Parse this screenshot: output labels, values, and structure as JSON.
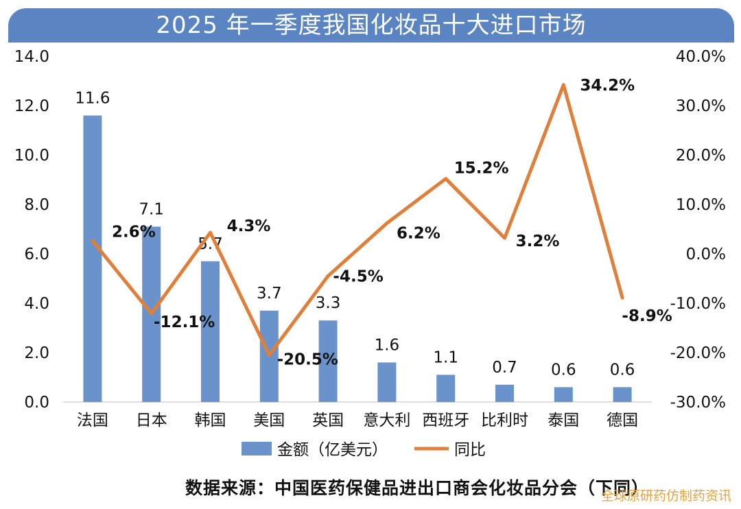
{
  "title": "2025 年一季度我国化妆品十大进口市场",
  "source": "数据来源：中国医药保健品进出口商会化妆品分会（下同）",
  "watermark": "全球原研药仿制药资讯",
  "colors": {
    "bar": "#6a93cb",
    "line": "#e07f3a",
    "banner": "#5b85c2"
  },
  "chart_data": {
    "type": "bar",
    "title": "2025 年一季度我国化妆品十大进口市场",
    "categories": [
      "法国",
      "日本",
      "韩国",
      "美国",
      "英国",
      "意大利",
      "西班牙",
      "比利时",
      "泰国",
      "德国"
    ],
    "series": [
      {
        "name": "金额（亿美元）",
        "type": "bar",
        "axis": "left",
        "values": [
          11.6,
          7.1,
          5.7,
          3.7,
          3.3,
          1.6,
          1.1,
          0.7,
          0.6,
          0.6
        ],
        "labels": [
          "11.6",
          "7.1",
          "5.7",
          "3.7",
          "3.3",
          "1.6",
          "1.1",
          "0.7",
          "0.6",
          "0.6"
        ]
      },
      {
        "name": "同比",
        "type": "line",
        "axis": "right",
        "values": [
          2.6,
          -12.1,
          4.3,
          -20.5,
          -4.5,
          6.2,
          15.2,
          3.2,
          34.2,
          -8.9
        ],
        "labels": [
          "2.6%",
          "-12.1%",
          "4.3%",
          "-20.5%",
          "-4.5%",
          "6.2%",
          "15.2%",
          "3.2%",
          "34.2%",
          "-8.9%"
        ]
      }
    ],
    "y_left": {
      "min": 0,
      "max": 14,
      "ticks": [
        "0.0",
        "2.0",
        "4.0",
        "6.0",
        "8.0",
        "10.0",
        "12.0",
        "14.0"
      ]
    },
    "y_right": {
      "min": -30,
      "max": 40,
      "ticks": [
        "-30.0%",
        "-20.0%",
        "-10.0%",
        "0.0%",
        "10.0%",
        "20.0%",
        "30.0%",
        "40.0%"
      ]
    },
    "grid": false,
    "legend_position": "bottom"
  }
}
